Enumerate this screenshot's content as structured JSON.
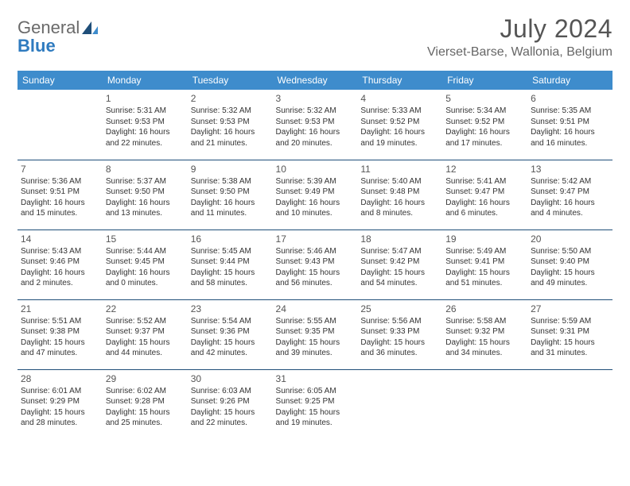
{
  "brand": {
    "word1": "General",
    "word2": "Blue"
  },
  "title": "July 2024",
  "location": "Vierset-Barse, Wallonia, Belgium",
  "colors": {
    "header_bg": "#3e8ccc",
    "header_text": "#ffffff",
    "divider": "#1f4e79",
    "brand_gray": "#6a6a6a",
    "brand_blue": "#2f7bbf",
    "text": "#333333",
    "title_color": "#555555"
  },
  "day_headers": [
    "Sunday",
    "Monday",
    "Tuesday",
    "Wednesday",
    "Thursday",
    "Friday",
    "Saturday"
  ],
  "weeks": [
    [
      null,
      {
        "n": "1",
        "sr": "Sunrise: 5:31 AM",
        "ss": "Sunset: 9:53 PM",
        "d1": "Daylight: 16 hours",
        "d2": "and 22 minutes."
      },
      {
        "n": "2",
        "sr": "Sunrise: 5:32 AM",
        "ss": "Sunset: 9:53 PM",
        "d1": "Daylight: 16 hours",
        "d2": "and 21 minutes."
      },
      {
        "n": "3",
        "sr": "Sunrise: 5:32 AM",
        "ss": "Sunset: 9:53 PM",
        "d1": "Daylight: 16 hours",
        "d2": "and 20 minutes."
      },
      {
        "n": "4",
        "sr": "Sunrise: 5:33 AM",
        "ss": "Sunset: 9:52 PM",
        "d1": "Daylight: 16 hours",
        "d2": "and 19 minutes."
      },
      {
        "n": "5",
        "sr": "Sunrise: 5:34 AM",
        "ss": "Sunset: 9:52 PM",
        "d1": "Daylight: 16 hours",
        "d2": "and 17 minutes."
      },
      {
        "n": "6",
        "sr": "Sunrise: 5:35 AM",
        "ss": "Sunset: 9:51 PM",
        "d1": "Daylight: 16 hours",
        "d2": "and 16 minutes."
      }
    ],
    [
      {
        "n": "7",
        "sr": "Sunrise: 5:36 AM",
        "ss": "Sunset: 9:51 PM",
        "d1": "Daylight: 16 hours",
        "d2": "and 15 minutes."
      },
      {
        "n": "8",
        "sr": "Sunrise: 5:37 AM",
        "ss": "Sunset: 9:50 PM",
        "d1": "Daylight: 16 hours",
        "d2": "and 13 minutes."
      },
      {
        "n": "9",
        "sr": "Sunrise: 5:38 AM",
        "ss": "Sunset: 9:50 PM",
        "d1": "Daylight: 16 hours",
        "d2": "and 11 minutes."
      },
      {
        "n": "10",
        "sr": "Sunrise: 5:39 AM",
        "ss": "Sunset: 9:49 PM",
        "d1": "Daylight: 16 hours",
        "d2": "and 10 minutes."
      },
      {
        "n": "11",
        "sr": "Sunrise: 5:40 AM",
        "ss": "Sunset: 9:48 PM",
        "d1": "Daylight: 16 hours",
        "d2": "and 8 minutes."
      },
      {
        "n": "12",
        "sr": "Sunrise: 5:41 AM",
        "ss": "Sunset: 9:47 PM",
        "d1": "Daylight: 16 hours",
        "d2": "and 6 minutes."
      },
      {
        "n": "13",
        "sr": "Sunrise: 5:42 AM",
        "ss": "Sunset: 9:47 PM",
        "d1": "Daylight: 16 hours",
        "d2": "and 4 minutes."
      }
    ],
    [
      {
        "n": "14",
        "sr": "Sunrise: 5:43 AM",
        "ss": "Sunset: 9:46 PM",
        "d1": "Daylight: 16 hours",
        "d2": "and 2 minutes."
      },
      {
        "n": "15",
        "sr": "Sunrise: 5:44 AM",
        "ss": "Sunset: 9:45 PM",
        "d1": "Daylight: 16 hours",
        "d2": "and 0 minutes."
      },
      {
        "n": "16",
        "sr": "Sunrise: 5:45 AM",
        "ss": "Sunset: 9:44 PM",
        "d1": "Daylight: 15 hours",
        "d2": "and 58 minutes."
      },
      {
        "n": "17",
        "sr": "Sunrise: 5:46 AM",
        "ss": "Sunset: 9:43 PM",
        "d1": "Daylight: 15 hours",
        "d2": "and 56 minutes."
      },
      {
        "n": "18",
        "sr": "Sunrise: 5:47 AM",
        "ss": "Sunset: 9:42 PM",
        "d1": "Daylight: 15 hours",
        "d2": "and 54 minutes."
      },
      {
        "n": "19",
        "sr": "Sunrise: 5:49 AM",
        "ss": "Sunset: 9:41 PM",
        "d1": "Daylight: 15 hours",
        "d2": "and 51 minutes."
      },
      {
        "n": "20",
        "sr": "Sunrise: 5:50 AM",
        "ss": "Sunset: 9:40 PM",
        "d1": "Daylight: 15 hours",
        "d2": "and 49 minutes."
      }
    ],
    [
      {
        "n": "21",
        "sr": "Sunrise: 5:51 AM",
        "ss": "Sunset: 9:38 PM",
        "d1": "Daylight: 15 hours",
        "d2": "and 47 minutes."
      },
      {
        "n": "22",
        "sr": "Sunrise: 5:52 AM",
        "ss": "Sunset: 9:37 PM",
        "d1": "Daylight: 15 hours",
        "d2": "and 44 minutes."
      },
      {
        "n": "23",
        "sr": "Sunrise: 5:54 AM",
        "ss": "Sunset: 9:36 PM",
        "d1": "Daylight: 15 hours",
        "d2": "and 42 minutes."
      },
      {
        "n": "24",
        "sr": "Sunrise: 5:55 AM",
        "ss": "Sunset: 9:35 PM",
        "d1": "Daylight: 15 hours",
        "d2": "and 39 minutes."
      },
      {
        "n": "25",
        "sr": "Sunrise: 5:56 AM",
        "ss": "Sunset: 9:33 PM",
        "d1": "Daylight: 15 hours",
        "d2": "and 36 minutes."
      },
      {
        "n": "26",
        "sr": "Sunrise: 5:58 AM",
        "ss": "Sunset: 9:32 PM",
        "d1": "Daylight: 15 hours",
        "d2": "and 34 minutes."
      },
      {
        "n": "27",
        "sr": "Sunrise: 5:59 AM",
        "ss": "Sunset: 9:31 PM",
        "d1": "Daylight: 15 hours",
        "d2": "and 31 minutes."
      }
    ],
    [
      {
        "n": "28",
        "sr": "Sunrise: 6:01 AM",
        "ss": "Sunset: 9:29 PM",
        "d1": "Daylight: 15 hours",
        "d2": "and 28 minutes."
      },
      {
        "n": "29",
        "sr": "Sunrise: 6:02 AM",
        "ss": "Sunset: 9:28 PM",
        "d1": "Daylight: 15 hours",
        "d2": "and 25 minutes."
      },
      {
        "n": "30",
        "sr": "Sunrise: 6:03 AM",
        "ss": "Sunset: 9:26 PM",
        "d1": "Daylight: 15 hours",
        "d2": "and 22 minutes."
      },
      {
        "n": "31",
        "sr": "Sunrise: 6:05 AM",
        "ss": "Sunset: 9:25 PM",
        "d1": "Daylight: 15 hours",
        "d2": "and 19 minutes."
      },
      null,
      null,
      null
    ]
  ]
}
